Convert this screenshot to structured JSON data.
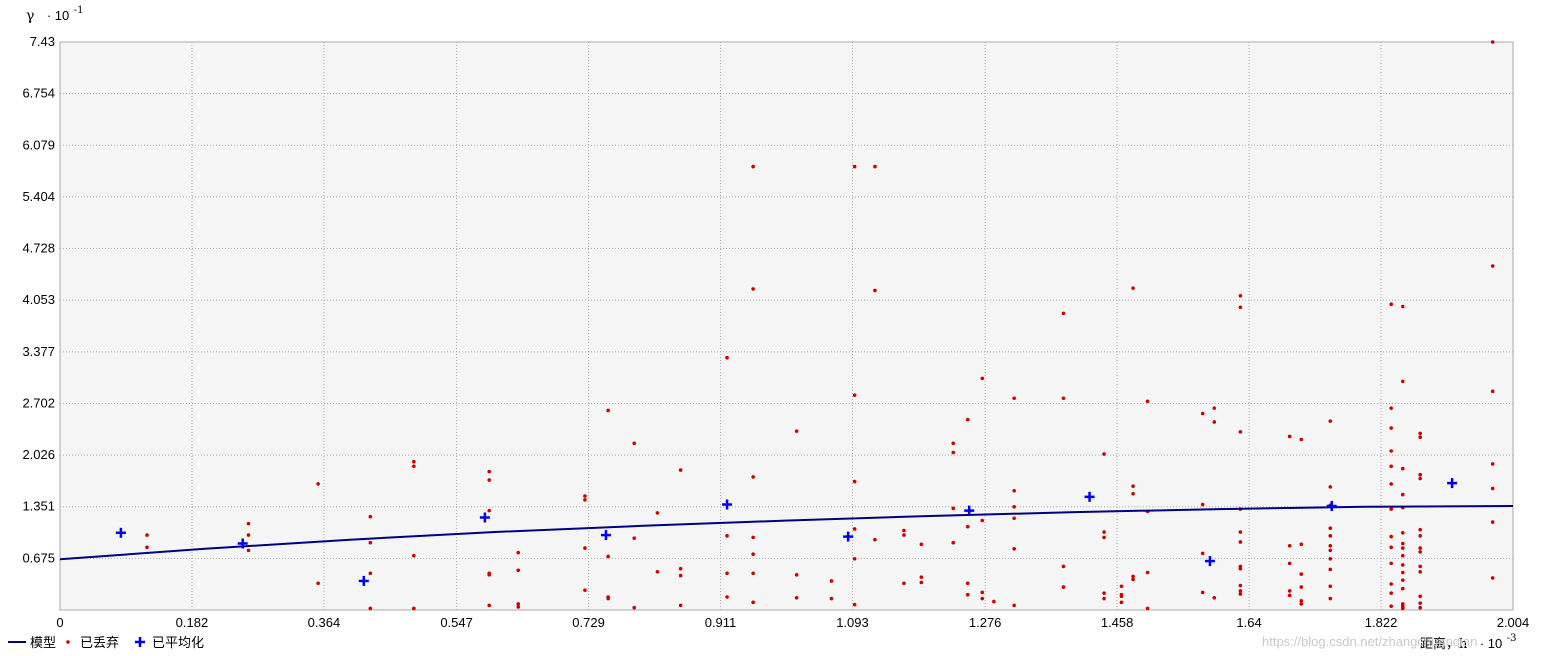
{
  "chart_data": {
    "type": "scatter",
    "ylabel": "γ",
    "y_multiplier": "· 10",
    "y_exponent": "-1",
    "xlabel": "距离，h",
    "x_multiplier": "· 10",
    "x_exponent": "-3",
    "xlim": [
      0,
      2.004
    ],
    "ylim": [
      0,
      7.43
    ],
    "x_ticks": [
      "0",
      "0.182",
      "0.364",
      "0.547",
      "0.729",
      "0.911",
      "1.093",
      "1.276",
      "1.458",
      "1.64",
      "1.822",
      "2.004"
    ],
    "y_ticks": [
      "0.675",
      "1.351",
      "2.026",
      "2.702",
      "3.377",
      "4.053",
      "4.728",
      "5.404",
      "6.079",
      "6.754",
      "7.43"
    ],
    "grid": true,
    "legend_position": "bottom-left",
    "colors": {
      "model": "#000080",
      "discarded": "#cc0000",
      "averaged": "#0000ee",
      "plot_bg": "#f5f5f5",
      "grid": "#aaaaaa"
    },
    "series": [
      {
        "name": "模型",
        "kind": "line",
        "x": [
          0,
          0.2,
          0.4,
          0.6,
          0.8,
          1.0,
          1.2,
          1.4,
          1.6,
          1.8,
          2.004
        ],
        "y": [
          0.665,
          0.8,
          0.92,
          1.02,
          1.1,
          1.17,
          1.23,
          1.28,
          1.32,
          1.35,
          1.36
        ]
      },
      {
        "name": "已丢弃",
        "kind": "points",
        "x": [
          0.12,
          0.12,
          0.26,
          0.26,
          0.26,
          0.356,
          0.356,
          0.428,
          0.428,
          0.428,
          0.428,
          0.488,
          0.488,
          0.488,
          0.488,
          0.592,
          0.592,
          0.592,
          0.592,
          0.592,
          0.592,
          0.632,
          0.632,
          0.632,
          0.632,
          0.724,
          0.724,
          0.724,
          0.724,
          0.756,
          0.756,
          0.756,
          0.756,
          0.792,
          0.792,
          0.792,
          0.824,
          0.824,
          0.856,
          0.856,
          0.856,
          0.856,
          0.92,
          0.92,
          0.92,
          0.92,
          0.956,
          0.956,
          0.956,
          0.956,
          0.956,
          0.956,
          0.956,
          1.016,
          1.016,
          1.016,
          1.064,
          1.064,
          1.096,
          1.096,
          1.096,
          1.096,
          1.096,
          1.096,
          1.124,
          1.124,
          1.124,
          1.164,
          1.164,
          1.164,
          1.188,
          1.188,
          1.188,
          1.232,
          1.232,
          1.232,
          1.232,
          1.252,
          1.252,
          1.252,
          1.252,
          1.272,
          1.272,
          1.272,
          1.272,
          1.288,
          1.316,
          1.316,
          1.316,
          1.316,
          1.316,
          1.316,
          1.384,
          1.384,
          1.384,
          1.384,
          1.44,
          1.44,
          1.44,
          1.44,
          1.44,
          1.464,
          1.464,
          1.464,
          1.464,
          1.48,
          1.48,
          1.48,
          1.48,
          1.48,
          1.5,
          1.5,
          1.5,
          1.5,
          1.576,
          1.576,
          1.576,
          1.576,
          1.592,
          1.592,
          1.592,
          1.628,
          1.628,
          1.628,
          1.628,
          1.628,
          1.628,
          1.628,
          1.628,
          1.628,
          1.628,
          1.628,
          1.696,
          1.696,
          1.696,
          1.696,
          1.696,
          1.712,
          1.712,
          1.712,
          1.712,
          1.712,
          1.712,
          1.752,
          1.752,
          1.752,
          1.752,
          1.752,
          1.752,
          1.752,
          1.752,
          1.752,
          1.752,
          1.752,
          1.836,
          1.836,
          1.836,
          1.836,
          1.836,
          1.836,
          1.836,
          1.836,
          1.836,
          1.836,
          1.836,
          1.836,
          1.836,
          1.852,
          1.852,
          1.852,
          1.852,
          1.852,
          1.852,
          1.852,
          1.852,
          1.852,
          1.852,
          1.852,
          1.852,
          1.852,
          1.852,
          1.852,
          1.852,
          1.852,
          1.852,
          1.876,
          1.876,
          1.876,
          1.876,
          1.876,
          1.876,
          1.876,
          1.876,
          1.876,
          1.876,
          1.876,
          1.876,
          1.876,
          1.976,
          1.976,
          1.976,
          1.976,
          1.976,
          1.976,
          1.976
        ],
        "y": [
          0.98,
          0.82,
          1.13,
          0.98,
          0.78,
          1.65,
          0.35,
          1.22,
          0.88,
          0.48,
          0.02,
          1.94,
          1.88,
          0.71,
          0.02,
          1.81,
          1.7,
          1.3,
          0.48,
          0.46,
          0.06,
          0.75,
          0.52,
          0.08,
          0.04,
          1.49,
          1.44,
          0.81,
          0.26,
          2.61,
          0.7,
          0.17,
          0.15,
          2.18,
          0.94,
          0.03,
          1.27,
          0.5,
          1.83,
          0.54,
          0.45,
          0.06,
          3.3,
          0.97,
          0.48,
          0.17,
          5.8,
          4.2,
          1.74,
          0.95,
          0.73,
          0.48,
          0.1,
          2.34,
          0.46,
          0.16,
          0.38,
          0.15,
          5.8,
          2.81,
          1.68,
          1.06,
          0.67,
          0.07,
          5.8,
          4.18,
          0.92,
          1.04,
          0.98,
          0.35,
          0.86,
          0.43,
          0.36,
          2.18,
          2.06,
          1.33,
          0.88,
          2.49,
          1.09,
          0.35,
          0.2,
          3.03,
          1.17,
          0.23,
          0.15,
          0.11,
          2.77,
          1.56,
          1.35,
          1.2,
          0.8,
          0.06,
          3.88,
          2.77,
          0.57,
          0.3,
          2.04,
          1.02,
          0.95,
          0.22,
          0.15,
          0.31,
          0.2,
          0.18,
          0.1,
          4.21,
          1.62,
          1.52,
          0.44,
          0.4,
          2.73,
          1.29,
          0.49,
          0.02,
          2.57,
          1.38,
          0.74,
          0.23,
          2.64,
          2.46,
          0.16,
          4.11,
          3.96,
          2.33,
          1.32,
          1.02,
          0.89,
          0.57,
          0.54,
          0.32,
          0.25,
          0.21,
          2.27,
          0.84,
          0.61,
          0.25,
          0.19,
          2.23,
          0.86,
          0.47,
          0.3,
          0.12,
          0.08,
          2.47,
          1.61,
          1.37,
          1.07,
          0.97,
          0.84,
          0.78,
          0.67,
          0.53,
          0.31,
          0.15,
          4.0,
          2.64,
          2.08,
          1.65,
          1.32,
          0.96,
          0.82,
          0.61,
          0.34,
          0.22,
          0.05,
          2.38,
          1.88,
          3.97,
          2.99,
          1.85,
          1.51,
          1.34,
          1.01,
          0.87,
          0.81,
          0.71,
          0.59,
          0.49,
          0.39,
          0.28,
          0.08,
          0.04,
          0.02,
          0.04,
          0.06,
          2.26,
          2.31,
          1.77,
          1.72,
          1.05,
          0.97,
          0.81,
          0.76,
          0.57,
          0.5,
          0.18,
          0.09,
          0.03,
          7.43,
          4.5,
          2.86,
          1.91,
          1.59,
          1.15,
          0.42
        ]
      },
      {
        "name": "已平均化",
        "kind": "crosses",
        "x": [
          0.084,
          0.252,
          0.419,
          0.586,
          0.753,
          0.92,
          1.087,
          1.254,
          1.42,
          1.586,
          1.754,
          1.92
        ],
        "y": [
          1.01,
          0.87,
          0.38,
          1.21,
          0.98,
          1.38,
          0.96,
          1.3,
          1.48,
          0.64,
          1.36,
          1.66
        ]
      }
    ]
  },
  "watermark": "https://blog.csdn.net/zhangchuanqian"
}
